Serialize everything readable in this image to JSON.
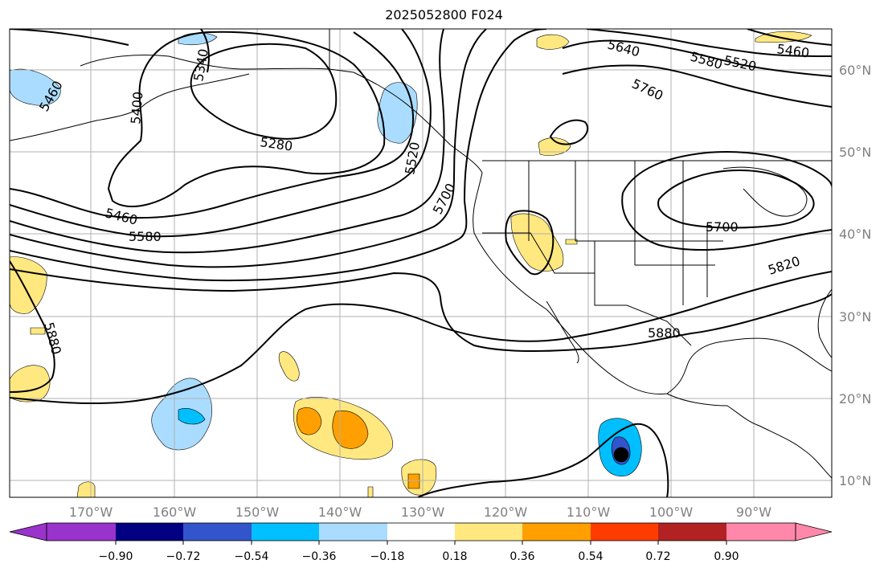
{
  "title": "2025052800 F024",
  "map": {
    "projection": "PlateCarree",
    "lon_labels": [
      "170°W",
      "160°W",
      "150°W",
      "140°W",
      "130°W",
      "120°W",
      "110°W",
      "100°W",
      "90°W"
    ],
    "lat_labels": [
      "60°N",
      "50°N",
      "40°N",
      "30°N",
      "20°N",
      "10°N"
    ],
    "contours": [
      {
        "value": "5460",
        "color": "#000000"
      },
      {
        "value": "5400",
        "color": "#000000"
      },
      {
        "value": "5340",
        "color": "#000000"
      },
      {
        "value": "5280",
        "color": "#000000"
      },
      {
        "value": "5460",
        "color": "#000000"
      },
      {
        "value": "5580",
        "color": "#000000"
      },
      {
        "value": "5520",
        "color": "#000000"
      },
      {
        "value": "5700",
        "color": "#000000"
      },
      {
        "value": "5640",
        "color": "#000000"
      },
      {
        "value": "5580",
        "color": "#000000"
      },
      {
        "value": "5520",
        "color": "#000000"
      },
      {
        "value": "5460",
        "color": "#000000"
      },
      {
        "value": "5760",
        "color": "#000000"
      },
      {
        "value": "5700",
        "color": "#000000"
      },
      {
        "value": "5820",
        "color": "#000000"
      },
      {
        "value": "5880",
        "color": "#000000"
      },
      {
        "value": "5880",
        "color": "#000000"
      }
    ]
  },
  "colorbar": {
    "tick_labels": [
      "−0.90",
      "−0.72",
      "−0.54",
      "−0.36",
      "−0.18",
      "0.18",
      "0.36",
      "0.54",
      "0.72",
      "0.90"
    ],
    "colors": [
      "#9933cc",
      "#000080",
      "#3355cc",
      "#00bfff",
      "#aadcff",
      "#ffffff",
      "#ffe880",
      "#ffa000",
      "#ff3c00",
      "#b22222",
      "#ff88aa"
    ]
  }
}
